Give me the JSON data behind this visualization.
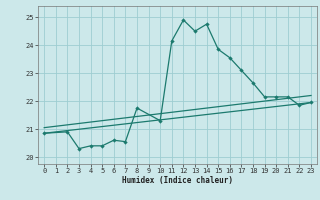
{
  "xlabel": "Humidex (Indice chaleur)",
  "xlim": [
    -0.5,
    23.5
  ],
  "ylim": [
    19.75,
    25.4
  ],
  "yticks": [
    20,
    21,
    22,
    23,
    24,
    25
  ],
  "xticks": [
    0,
    1,
    2,
    3,
    4,
    5,
    6,
    7,
    8,
    9,
    10,
    11,
    12,
    13,
    14,
    15,
    16,
    17,
    18,
    19,
    20,
    21,
    22,
    23
  ],
  "bg_color": "#cce8ea",
  "grid_color": "#9ecdd1",
  "line_color": "#1c7a6e",
  "series1_x": [
    0,
    2,
    3,
    4,
    5,
    6,
    7,
    8,
    10,
    11,
    12,
    13,
    14,
    15,
    16,
    17,
    18,
    19,
    20,
    21,
    22,
    23
  ],
  "series1_y": [
    20.85,
    20.9,
    20.3,
    20.4,
    20.4,
    20.6,
    20.55,
    21.75,
    21.3,
    24.15,
    24.9,
    24.5,
    24.75,
    23.85,
    23.55,
    23.1,
    22.65,
    22.15,
    22.15,
    22.15,
    21.85,
    21.95
  ],
  "series2_x": [
    0,
    23
  ],
  "series2_y": [
    21.05,
    22.2
  ],
  "series3_x": [
    0,
    23
  ],
  "series3_y": [
    20.85,
    21.95
  ],
  "figsize": [
    3.2,
    2.0
  ],
  "dpi": 100
}
